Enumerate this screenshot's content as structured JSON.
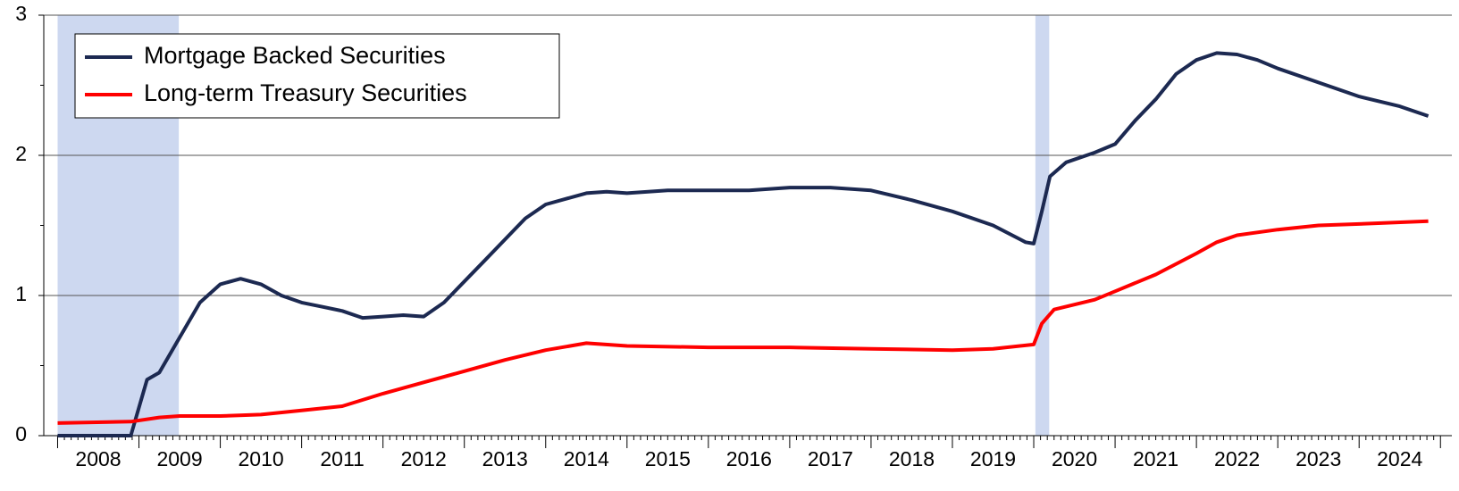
{
  "chart_data": {
    "type": "line",
    "xlim": [
      2007.83,
      2025.14
    ],
    "ylim": [
      0,
      3
    ],
    "yticks": [
      0,
      1,
      2,
      3
    ],
    "xticks": [
      {
        "value": 2008.5,
        "label": "2008"
      },
      {
        "value": 2009.5,
        "label": "2009"
      },
      {
        "value": 2010.5,
        "label": "2010"
      },
      {
        "value": 2011.5,
        "label": "2011"
      },
      {
        "value": 2012.5,
        "label": "2012"
      },
      {
        "value": 2013.5,
        "label": "2013"
      },
      {
        "value": 2014.5,
        "label": "2014"
      },
      {
        "value": 2015.5,
        "label": "2015"
      },
      {
        "value": 2016.5,
        "label": "2016"
      },
      {
        "value": 2017.5,
        "label": "2017"
      },
      {
        "value": 2018.5,
        "label": "2018"
      },
      {
        "value": 2019.5,
        "label": "2019"
      },
      {
        "value": 2020.5,
        "label": "2020"
      },
      {
        "value": 2021.5,
        "label": "2021"
      },
      {
        "value": 2022.5,
        "label": "2022"
      },
      {
        "value": 2023.5,
        "label": "2023"
      },
      {
        "value": 2024.5,
        "label": "2024"
      }
    ],
    "grid": true,
    "shaded_regions": [
      [
        2008.0,
        2009.49
      ],
      [
        2020.02,
        2020.19
      ]
    ],
    "shade_color": "#cdd8f0",
    "legend": "upper left",
    "series": [
      {
        "name": "Mortgage Backed Securities",
        "color": "#1c2951",
        "x": [
          2008.0,
          2008.9,
          2009.0,
          2009.1,
          2009.25,
          2009.5,
          2009.75,
          2010.0,
          2010.25,
          2010.5,
          2010.75,
          2011.0,
          2011.25,
          2011.5,
          2011.75,
          2012.0,
          2012.25,
          2012.5,
          2012.75,
          2013.0,
          2013.25,
          2013.5,
          2013.75,
          2014.0,
          2014.25,
          2014.5,
          2014.75,
          2015.0,
          2015.5,
          2016.0,
          2016.5,
          2017.0,
          2017.5,
          2018.0,
          2018.5,
          2019.0,
          2019.5,
          2019.9,
          2020.0,
          2020.1,
          2020.2,
          2020.4,
          2020.75,
          2021.0,
          2021.25,
          2021.5,
          2021.75,
          2022.0,
          2022.25,
          2022.5,
          2022.75,
          2023.0,
          2023.5,
          2024.0,
          2024.5,
          2024.85
        ],
        "values": [
          0,
          0,
          0.2,
          0.4,
          0.45,
          0.7,
          0.95,
          1.08,
          1.12,
          1.08,
          1.0,
          0.95,
          0.92,
          0.89,
          0.84,
          0.85,
          0.86,
          0.85,
          0.95,
          1.1,
          1.25,
          1.4,
          1.55,
          1.65,
          1.69,
          1.73,
          1.74,
          1.73,
          1.75,
          1.75,
          1.75,
          1.77,
          1.77,
          1.75,
          1.68,
          1.6,
          1.5,
          1.38,
          1.37,
          1.6,
          1.85,
          1.95,
          2.02,
          2.08,
          2.25,
          2.4,
          2.58,
          2.68,
          2.73,
          2.72,
          2.68,
          2.62,
          2.52,
          2.42,
          2.35,
          2.28
        ]
      },
      {
        "name": "Long-term Treasury Securities",
        "color": "#ff0000",
        "x": [
          2008.0,
          2008.9,
          2009.25,
          2009.5,
          2010.0,
          2010.5,
          2011.0,
          2011.5,
          2012.0,
          2012.5,
          2013.0,
          2013.5,
          2014.0,
          2014.5,
          2015.0,
          2016.0,
          2017.0,
          2018.0,
          2019.0,
          2019.5,
          2020.0,
          2020.1,
          2020.25,
          2020.75,
          2021.0,
          2021.5,
          2022.0,
          2022.25,
          2022.5,
          2023.0,
          2023.5,
          2024.0,
          2024.85
        ],
        "values": [
          0.09,
          0.1,
          0.13,
          0.14,
          0.14,
          0.15,
          0.18,
          0.21,
          0.3,
          0.38,
          0.46,
          0.54,
          0.61,
          0.66,
          0.64,
          0.63,
          0.63,
          0.62,
          0.61,
          0.62,
          0.65,
          0.8,
          0.9,
          0.97,
          1.03,
          1.15,
          1.3,
          1.38,
          1.43,
          1.47,
          1.5,
          1.51,
          1.53
        ]
      }
    ]
  }
}
